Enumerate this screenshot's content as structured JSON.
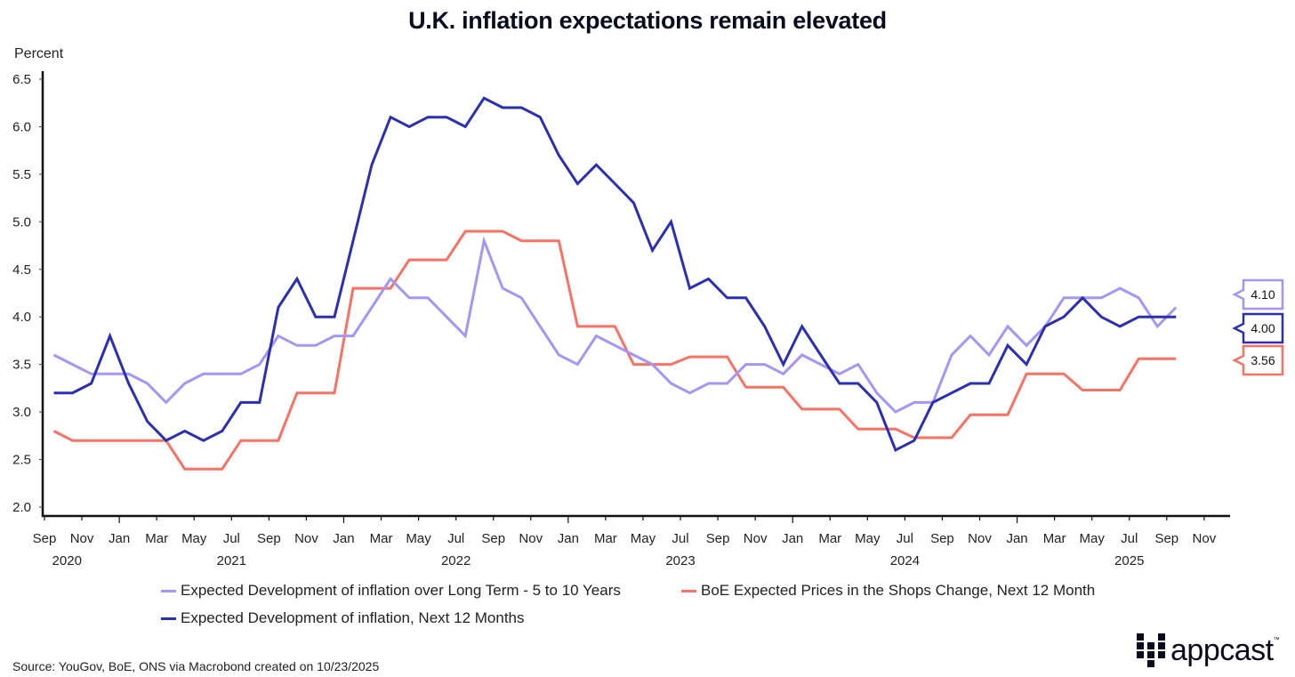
{
  "chart_data": {
    "type": "line",
    "title": "U.K. inflation expectations remain elevated",
    "ylabel": "Percent",
    "xlabel": "",
    "ylim": [
      2.0,
      6.5
    ],
    "yticks": [
      "2.0",
      "2.5",
      "3.0",
      "3.5",
      "4.0",
      "4.5",
      "5.0",
      "5.5",
      "6.0",
      "6.5"
    ],
    "xrange": [
      "Sep 2020",
      "Nov 2025"
    ],
    "x_start": "Sep 2020",
    "frequency": "monthly",
    "month_ticks": [
      "Sep",
      "Nov",
      "Jan",
      "Mar",
      "May",
      "Jul",
      "Sep",
      "Nov",
      "Jan",
      "Mar",
      "May",
      "Jul",
      "Sep",
      "Nov",
      "Jan",
      "Mar",
      "May",
      "Jul",
      "Sep",
      "Nov",
      "Jan",
      "Mar",
      "May",
      "Jul",
      "Sep",
      "Nov",
      "Jan",
      "Mar",
      "May",
      "Jul",
      "Sep",
      "Nov"
    ],
    "year_labels": [
      {
        "label": "2020",
        "month_offset": 1.2
      },
      {
        "label": "2021",
        "month_offset": 10
      },
      {
        "label": "2022",
        "month_offset": 22
      },
      {
        "label": "2023",
        "month_offset": 34
      },
      {
        "label": "2024",
        "month_offset": 46
      },
      {
        "label": "2025",
        "month_offset": 58
      }
    ],
    "grid": false,
    "legend_position": "bottom",
    "series": [
      {
        "name": "Expected Development of inflation over Long Term - 5 to 10 Years",
        "color": "#a596f6",
        "end_label": "4.10",
        "values": [
          3.6,
          3.5,
          3.4,
          3.4,
          3.4,
          3.3,
          3.1,
          3.3,
          3.4,
          3.4,
          3.4,
          3.5,
          3.8,
          3.7,
          3.7,
          3.8,
          3.8,
          4.1,
          4.4,
          4.2,
          4.2,
          4.0,
          3.8,
          4.8,
          4.3,
          4.2,
          3.9,
          3.6,
          3.5,
          3.8,
          3.7,
          3.6,
          3.5,
          3.3,
          3.2,
          3.3,
          3.3,
          3.5,
          3.5,
          3.4,
          3.6,
          3.5,
          3.4,
          3.5,
          3.2,
          3.0,
          3.1,
          3.1,
          3.6,
          3.8,
          3.6,
          3.9,
          3.7,
          3.9,
          4.2,
          4.2,
          4.2,
          4.3,
          4.2,
          3.9,
          4.1
        ]
      },
      {
        "name": "BoE Expected Prices in the Shops Change, Next 12 Month",
        "color": "#f87265",
        "end_label": "3.56",
        "values": [
          2.8,
          2.7,
          2.7,
          2.7,
          2.7,
          2.7,
          2.7,
          2.4,
          2.4,
          2.4,
          2.7,
          2.7,
          2.7,
          3.2,
          3.2,
          3.2,
          4.3,
          4.3,
          4.3,
          4.6,
          4.6,
          4.6,
          4.9,
          4.9,
          4.9,
          4.8,
          4.8,
          4.8,
          3.9,
          3.9,
          3.9,
          3.5,
          3.5,
          3.5,
          3.58,
          3.58,
          3.58,
          3.26,
          3.26,
          3.26,
          3.03,
          3.03,
          3.03,
          2.82,
          2.82,
          2.82,
          2.73,
          2.73,
          2.73,
          2.97,
          2.97,
          2.97,
          3.4,
          3.4,
          3.4,
          3.23,
          3.23,
          3.23,
          3.56,
          3.56,
          3.56
        ]
      },
      {
        "name": "Expected Development of inflation, Next 12 Months",
        "color": "#2a2fb4",
        "end_label": "4.00",
        "values": [
          3.2,
          3.2,
          3.3,
          3.8,
          3.3,
          2.9,
          2.7,
          2.8,
          2.7,
          2.8,
          3.1,
          3.1,
          4.1,
          4.4,
          4.0,
          4.0,
          4.8,
          5.6,
          6.1,
          6.0,
          6.1,
          6.1,
          6.0,
          6.3,
          6.2,
          6.2,
          6.1,
          5.7,
          5.4,
          5.6,
          5.4,
          5.2,
          4.7,
          5.0,
          4.3,
          4.4,
          4.2,
          4.2,
          3.9,
          3.5,
          3.9,
          3.6,
          3.3,
          3.3,
          3.1,
          2.6,
          2.7,
          3.1,
          3.2,
          3.3,
          3.3,
          3.7,
          3.5,
          3.9,
          4.0,
          4.2,
          4.0,
          3.9,
          4.0,
          4.0,
          4.0
        ]
      }
    ],
    "source": "Source: YouGov, BoE, ONS via Macrobond created on 10/23/2025",
    "logo_text": "appcast",
    "logo_tm": "™"
  }
}
